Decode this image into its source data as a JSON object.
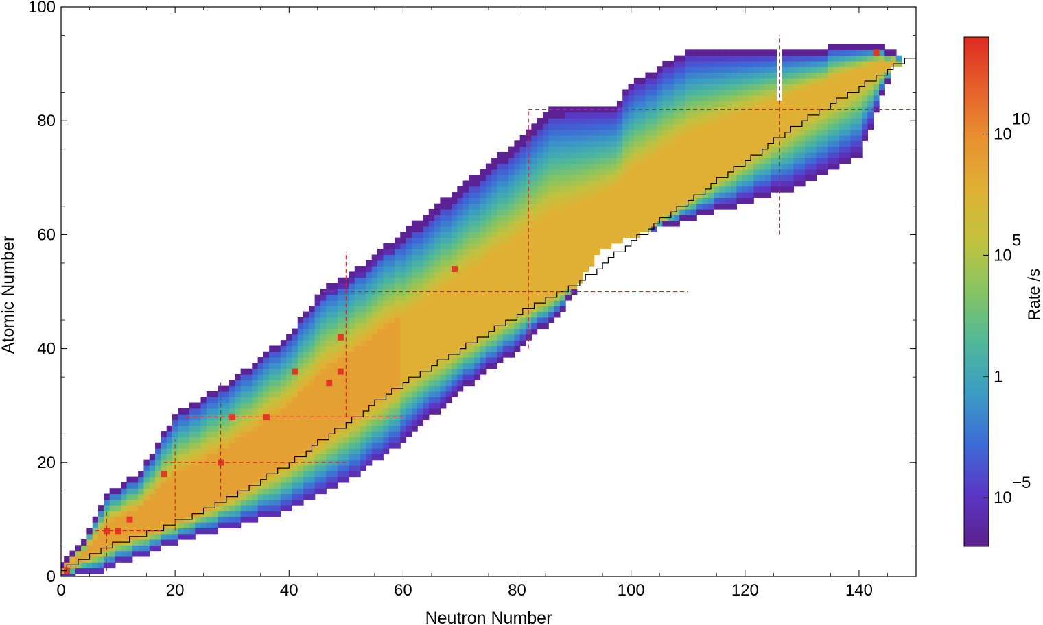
{
  "chart_data": {
    "type": "heatmap",
    "title": "",
    "xlabel": "Neutron Number",
    "ylabel": "Atomic Number",
    "xlim": [
      0,
      150
    ],
    "ylim": [
      0,
      100
    ],
    "x_ticks": [
      "0",
      "20",
      "40",
      "60",
      "80",
      "100",
      "120",
      "140"
    ],
    "y_ticks": [
      "0",
      "20",
      "40",
      "60",
      "80",
      "100"
    ],
    "colorbar": {
      "label": "Rate /s",
      "scale": "log",
      "range_log10": [
        -7,
        14
      ],
      "ticks": [
        {
          "base": "10",
          "exp": "10",
          "log10": 10
        },
        {
          "base": "10",
          "exp": "5",
          "log10": 5
        },
        {
          "base": "1",
          "exp": "",
          "log10": 0
        },
        {
          "base": "10",
          "exp": "−5",
          "log10": -5
        }
      ],
      "colors": [
        "#5c1f8e",
        "#5b36c4",
        "#3d6bd6",
        "#3b9cc4",
        "#4fb89a",
        "#86c462",
        "#c2c23e",
        "#e0b035",
        "#e99030",
        "#e6602a",
        "#dd2a22"
      ]
    },
    "band": {
      "description_points_proton_rich_edge": [
        [
          0,
          2
        ],
        [
          4,
          6
        ],
        [
          8,
          14
        ],
        [
          14,
          18
        ],
        [
          20,
          28
        ],
        [
          30,
          34
        ],
        [
          40,
          42
        ],
        [
          46,
          50
        ],
        [
          50,
          52
        ],
        [
          60,
          60
        ],
        [
          70,
          68
        ],
        [
          80,
          76
        ],
        [
          86,
          82
        ],
        [
          97,
          82
        ],
        [
          100,
          86
        ],
        [
          110,
          92
        ],
        [
          125,
          92
        ],
        [
          145,
          93
        ]
      ],
      "description_points_neutron_rich_edge": [
        [
          0,
          0
        ],
        [
          6,
          1
        ],
        [
          14,
          4
        ],
        [
          22,
          7
        ],
        [
          30,
          9
        ],
        [
          40,
          12
        ],
        [
          50,
          17
        ],
        [
          60,
          24
        ],
        [
          70,
          33
        ],
        [
          80,
          40
        ],
        [
          88,
          47
        ],
        [
          94,
          57
        ],
        [
          100,
          60
        ],
        [
          120,
          66
        ],
        [
          130,
          69
        ],
        [
          140,
          74
        ],
        [
          143,
          82
        ],
        [
          146,
          90
        ]
      ]
    },
    "stability_line": [
      [
        0,
        1
      ],
      [
        2,
        2
      ],
      [
        6,
        4
      ],
      [
        10,
        6
      ],
      [
        16,
        8
      ],
      [
        24,
        11
      ],
      [
        30,
        14
      ],
      [
        40,
        20
      ],
      [
        50,
        27
      ],
      [
        60,
        34
      ],
      [
        70,
        40
      ],
      [
        80,
        46
      ],
      [
        90,
        51
      ],
      [
        100,
        59
      ],
      [
        110,
        66
      ],
      [
        120,
        73
      ],
      [
        130,
        80
      ],
      [
        140,
        86
      ],
      [
        150,
        92
      ]
    ],
    "magic_lines": {
      "vertical": [
        {
          "x": 8,
          "y": [
            1,
            12
          ]
        },
        {
          "x": 20,
          "y": [
            8,
            24
          ]
        },
        {
          "x": 28,
          "y": [
            14,
            34
          ]
        },
        {
          "x": 50,
          "y": [
            28,
            57
          ]
        },
        {
          "x": 82,
          "y": [
            40,
            82
          ]
        },
        {
          "x": 126,
          "y": [
            60,
            95
          ]
        }
      ],
      "horizontal": [
        {
          "y": 8,
          "x": [
            6,
            18
          ]
        },
        {
          "y": 20,
          "x": [
            18,
            50
          ]
        },
        {
          "y": 28,
          "x": [
            22,
            60
          ]
        },
        {
          "y": 50,
          "x": [
            46,
            110
          ]
        },
        {
          "y": 82,
          "x": [
            82,
            150
          ]
        }
      ]
    },
    "hot_spots": [
      [
        1,
        1
      ],
      [
        8,
        8
      ],
      [
        10,
        8
      ],
      [
        12,
        10
      ],
      [
        18,
        18
      ],
      [
        28,
        20
      ],
      [
        30,
        28
      ],
      [
        36,
        28
      ],
      [
        41,
        36
      ],
      [
        47,
        34
      ],
      [
        49,
        36
      ],
      [
        49,
        42
      ],
      [
        69,
        54
      ],
      [
        143,
        92
      ]
    ]
  }
}
